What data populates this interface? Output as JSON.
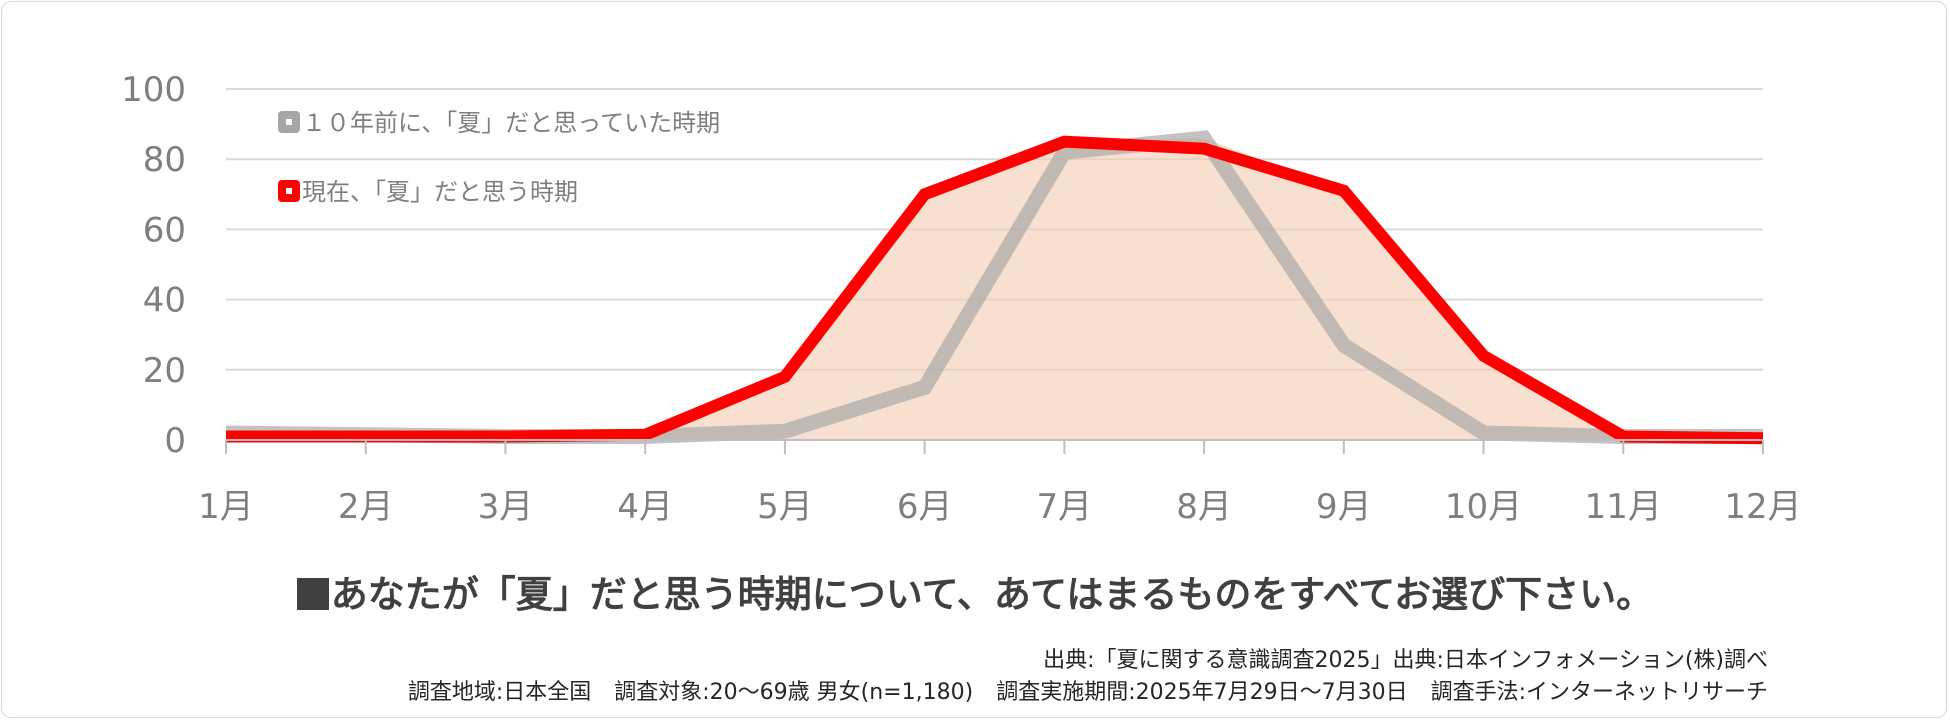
{
  "chart_data": {
    "type": "area",
    "categories": [
      "1月",
      "2月",
      "3月",
      "4月",
      "5月",
      "6月",
      "7月",
      "8月",
      "9月",
      "10月",
      "11月",
      "12月"
    ],
    "ylim": [
      0,
      100
    ],
    "yticks": [
      "0",
      "20",
      "40",
      "60",
      "80",
      "100"
    ],
    "grid": true,
    "legend_position": "top-left",
    "series": [
      {
        "name": "１０年前に、「夏」だと思っていた時期",
        "values": [
          2,
          1.5,
          1,
          1,
          2.5,
          15,
          82,
          86,
          27,
          2,
          1,
          1
        ],
        "color": "#a6a6a6"
      },
      {
        "name": "現在、「夏」だと思う時期",
        "values": [
          1,
          1,
          1,
          1.5,
          18,
          70,
          85,
          83,
          71,
          24,
          1,
          0.5
        ],
        "color": "#ff0000"
      }
    ],
    "fill_color": "#f4cdb4"
  },
  "question": "あなたが「夏」だと思う時期について、あてはまるものをすべてお選び下さい。",
  "source": "出典:「夏に関する意識調査2025」出典:日本インフォメーション(株)調べ",
  "meta": {
    "region": "調査地域:日本全国",
    "target": "調査対象:20～69歳 男女(n=1,180)",
    "period": "調査実施期間:2025年7月29日～7月30日",
    "method": "調査手法:インターネットリサーチ"
  }
}
